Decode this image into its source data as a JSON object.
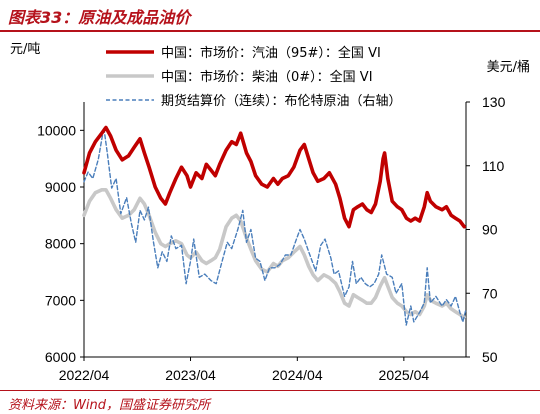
{
  "header": {
    "title": "图表33：原油及成品油价"
  },
  "footer": {
    "source": "资料来源：Wind，国盛证券研究所"
  },
  "colors": {
    "accent": "#b5121b",
    "gasoline": "#c00000",
    "diesel": "#c8c8c8",
    "brent": "#4a7ebb"
  },
  "chart_data": {
    "type": "line",
    "title": "",
    "x_ticks": [
      "2022/04",
      "2023/04",
      "2024/04",
      "2025/04"
    ],
    "x_range": [
      "2022-04-01",
      "2025-10-31"
    ],
    "y_left": {
      "label": "元/吨",
      "range": [
        6000,
        10500
      ],
      "ticks": [
        6000,
        7000,
        8000,
        9000,
        10000
      ]
    },
    "y_right": {
      "label": "美元/桶",
      "range": [
        50,
        130
      ],
      "ticks": [
        50,
        70,
        90,
        110,
        130
      ]
    },
    "grid": false,
    "legend_position": "top",
    "series": [
      {
        "name": "中国：市场价：汽油（95#）：全国 VI",
        "axis": "left",
        "data": [
          [
            "2022-04-01",
            9250
          ],
          [
            "2022-04-20",
            9600
          ],
          [
            "2022-05-10",
            9800
          ],
          [
            "2022-06-01",
            9950
          ],
          [
            "2022-06-15",
            10050
          ],
          [
            "2022-07-01",
            9900
          ],
          [
            "2022-07-20",
            9650
          ],
          [
            "2022-08-10",
            9480
          ],
          [
            "2022-09-01",
            9550
          ],
          [
            "2022-09-20",
            9700
          ],
          [
            "2022-10-10",
            9850
          ],
          [
            "2022-10-25",
            9600
          ],
          [
            "2022-11-10",
            9350
          ],
          [
            "2022-12-01",
            9000
          ],
          [
            "2022-12-20",
            8800
          ],
          [
            "2023-01-05",
            8700
          ],
          [
            "2023-01-20",
            8900
          ],
          [
            "2023-02-10",
            9150
          ],
          [
            "2023-03-01",
            9350
          ],
          [
            "2023-03-20",
            9200
          ],
          [
            "2023-04-01",
            9000
          ],
          [
            "2023-04-20",
            9250
          ],
          [
            "2023-05-10",
            9150
          ],
          [
            "2023-05-25",
            9400
          ],
          [
            "2023-06-10",
            9300
          ],
          [
            "2023-06-25",
            9200
          ],
          [
            "2023-07-10",
            9400
          ],
          [
            "2023-08-01",
            9650
          ],
          [
            "2023-08-20",
            9800
          ],
          [
            "2023-09-05",
            9750
          ],
          [
            "2023-09-20",
            9950
          ],
          [
            "2023-10-10",
            9600
          ],
          [
            "2023-10-25",
            9450
          ],
          [
            "2023-11-10",
            9200
          ],
          [
            "2023-12-01",
            9050
          ],
          [
            "2023-12-20",
            9000
          ],
          [
            "2024-01-10",
            9150
          ],
          [
            "2024-01-25",
            9050
          ],
          [
            "2024-02-10",
            9150
          ],
          [
            "2024-03-01",
            9200
          ],
          [
            "2024-03-20",
            9350
          ],
          [
            "2024-04-10",
            9650
          ],
          [
            "2024-04-25",
            9750
          ],
          [
            "2024-05-10",
            9500
          ],
          [
            "2024-05-25",
            9250
          ],
          [
            "2024-06-10",
            9100
          ],
          [
            "2024-07-01",
            9150
          ],
          [
            "2024-07-20",
            9250
          ],
          [
            "2024-08-10",
            9050
          ],
          [
            "2024-08-25",
            8800
          ],
          [
            "2024-09-10",
            8450
          ],
          [
            "2024-09-25",
            8300
          ],
          [
            "2024-10-10",
            8600
          ],
          [
            "2024-10-25",
            8650
          ],
          [
            "2024-11-10",
            8700
          ],
          [
            "2024-11-25",
            8600
          ],
          [
            "2024-12-10",
            8550
          ],
          [
            "2024-12-25",
            8700
          ],
          [
            "2025-01-10",
            9100
          ],
          [
            "2025-01-20",
            9500
          ],
          [
            "2025-01-25",
            9600
          ],
          [
            "2025-02-05",
            9150
          ],
          [
            "2025-02-20",
            8750
          ],
          [
            "2025-03-10",
            8650
          ],
          [
            "2025-03-25",
            8600
          ],
          [
            "2025-04-10",
            8450
          ],
          [
            "2025-04-25",
            8400
          ],
          [
            "2025-05-10",
            8450
          ],
          [
            "2025-05-25",
            8400
          ],
          [
            "2025-06-10",
            8650
          ],
          [
            "2025-06-20",
            8900
          ],
          [
            "2025-07-01",
            8750
          ],
          [
            "2025-07-20",
            8650
          ],
          [
            "2025-08-10",
            8600
          ],
          [
            "2025-08-25",
            8650
          ],
          [
            "2025-09-10",
            8500
          ],
          [
            "2025-09-25",
            8450
          ],
          [
            "2025-10-10",
            8400
          ],
          [
            "2025-10-25",
            8300
          ]
        ]
      },
      {
        "name": "中国：市场价：柴油（0#）：全国 VI",
        "axis": "left",
        "data": [
          [
            "2022-04-01",
            8500
          ],
          [
            "2022-04-20",
            8750
          ],
          [
            "2022-05-10",
            8900
          ],
          [
            "2022-06-01",
            8950
          ],
          [
            "2022-06-15",
            8950
          ],
          [
            "2022-07-01",
            8800
          ],
          [
            "2022-07-20",
            8600
          ],
          [
            "2022-08-10",
            8450
          ],
          [
            "2022-09-01",
            8500
          ],
          [
            "2022-09-20",
            8600
          ],
          [
            "2022-10-10",
            8800
          ],
          [
            "2022-10-25",
            8700
          ],
          [
            "2022-11-10",
            8500
          ],
          [
            "2022-12-01",
            8200
          ],
          [
            "2022-12-20",
            8000
          ],
          [
            "2023-01-05",
            7950
          ],
          [
            "2023-01-20",
            8000
          ],
          [
            "2023-02-10",
            8050
          ],
          [
            "2023-03-01",
            8000
          ],
          [
            "2023-03-20",
            7800
          ],
          [
            "2023-04-01",
            7750
          ],
          [
            "2023-04-20",
            7850
          ],
          [
            "2023-05-10",
            7700
          ],
          [
            "2023-05-25",
            7650
          ],
          [
            "2023-06-10",
            7700
          ],
          [
            "2023-06-25",
            7750
          ],
          [
            "2023-07-10",
            7900
          ],
          [
            "2023-08-01",
            8300
          ],
          [
            "2023-08-20",
            8450
          ],
          [
            "2023-09-05",
            8500
          ],
          [
            "2023-09-20",
            8400
          ],
          [
            "2023-10-10",
            8100
          ],
          [
            "2023-10-25",
            7900
          ],
          [
            "2023-11-10",
            7700
          ],
          [
            "2023-12-01",
            7550
          ],
          [
            "2023-12-20",
            7500
          ],
          [
            "2024-01-10",
            7650
          ],
          [
            "2024-01-25",
            7600
          ],
          [
            "2024-02-10",
            7700
          ],
          [
            "2024-03-01",
            7750
          ],
          [
            "2024-03-20",
            7850
          ],
          [
            "2024-04-10",
            7950
          ],
          [
            "2024-04-25",
            7800
          ],
          [
            "2024-05-10",
            7600
          ],
          [
            "2024-05-25",
            7450
          ],
          [
            "2024-06-10",
            7350
          ],
          [
            "2024-07-01",
            7450
          ],
          [
            "2024-07-20",
            7400
          ],
          [
            "2024-08-10",
            7300
          ],
          [
            "2024-08-25",
            7150
          ],
          [
            "2024-09-10",
            6950
          ],
          [
            "2024-09-25",
            6900
          ],
          [
            "2024-10-10",
            7100
          ],
          [
            "2024-10-25",
            7050
          ],
          [
            "2024-11-10",
            7000
          ],
          [
            "2024-11-25",
            6950
          ],
          [
            "2024-12-10",
            6950
          ],
          [
            "2024-12-25",
            7050
          ],
          [
            "2025-01-10",
            7250
          ],
          [
            "2025-01-20",
            7350
          ],
          [
            "2025-01-25",
            7400
          ],
          [
            "2025-02-05",
            7250
          ],
          [
            "2025-02-20",
            7050
          ],
          [
            "2025-03-10",
            6950
          ],
          [
            "2025-03-25",
            6900
          ],
          [
            "2025-04-10",
            6800
          ],
          [
            "2025-04-25",
            6750
          ],
          [
            "2025-05-10",
            6800
          ],
          [
            "2025-05-25",
            6750
          ],
          [
            "2025-06-10",
            6900
          ],
          [
            "2025-06-20",
            7100
          ],
          [
            "2025-07-01",
            7000
          ],
          [
            "2025-07-20",
            6950
          ],
          [
            "2025-08-10",
            6900
          ],
          [
            "2025-08-25",
            6950
          ],
          [
            "2025-09-10",
            6850
          ],
          [
            "2025-09-25",
            6800
          ],
          [
            "2025-10-10",
            6750
          ],
          [
            "2025-10-25",
            6700
          ]
        ]
      },
      {
        "name": "期货结算价（连续）：布伦特原油（右轴）",
        "axis": "right",
        "data": [
          [
            "2022-04-01",
            105
          ],
          [
            "2022-04-15",
            108
          ],
          [
            "2022-05-01",
            106
          ],
          [
            "2022-05-20",
            112
          ],
          [
            "2022-06-08",
            122
          ],
          [
            "2022-06-20",
            114
          ],
          [
            "2022-07-05",
            103
          ],
          [
            "2022-07-20",
            106
          ],
          [
            "2022-08-05",
            95
          ],
          [
            "2022-08-25",
            100
          ],
          [
            "2022-09-10",
            92
          ],
          [
            "2022-09-25",
            86
          ],
          [
            "2022-10-10",
            96
          ],
          [
            "2022-10-25",
            93
          ],
          [
            "2022-11-08",
            97
          ],
          [
            "2022-11-25",
            86
          ],
          [
            "2022-12-10",
            78
          ],
          [
            "2022-12-25",
            83
          ],
          [
            "2023-01-10",
            80
          ],
          [
            "2023-01-25",
            88
          ],
          [
            "2023-02-10",
            84
          ],
          [
            "2023-03-01",
            85
          ],
          [
            "2023-03-17",
            73
          ],
          [
            "2023-04-01",
            80
          ],
          [
            "2023-04-12",
            87
          ],
          [
            "2023-05-01",
            75
          ],
          [
            "2023-05-20",
            76
          ],
          [
            "2023-06-10",
            74
          ],
          [
            "2023-06-28",
            73
          ],
          [
            "2023-07-15",
            79
          ],
          [
            "2023-08-05",
            86
          ],
          [
            "2023-08-20",
            84
          ],
          [
            "2023-09-10",
            90
          ],
          [
            "2023-09-27",
            96
          ],
          [
            "2023-10-10",
            86
          ],
          [
            "2023-10-25",
            90
          ],
          [
            "2023-11-10",
            81
          ],
          [
            "2023-11-25",
            80
          ],
          [
            "2023-12-12",
            74
          ],
          [
            "2023-12-28",
            78
          ],
          [
            "2024-01-15",
            78
          ],
          [
            "2024-02-01",
            79
          ],
          [
            "2024-02-20",
            82
          ],
          [
            "2024-03-10",
            82
          ],
          [
            "2024-03-25",
            86
          ],
          [
            "2024-04-10",
            90
          ],
          [
            "2024-04-25",
            87
          ],
          [
            "2024-05-10",
            83
          ],
          [
            "2024-06-03",
            77
          ],
          [
            "2024-06-20",
            85
          ],
          [
            "2024-07-05",
            87
          ],
          [
            "2024-07-25",
            81
          ],
          [
            "2024-08-05",
            76
          ],
          [
            "2024-08-20",
            77
          ],
          [
            "2024-09-10",
            69
          ],
          [
            "2024-09-25",
            72
          ],
          [
            "2024-10-07",
            80
          ],
          [
            "2024-10-20",
            73
          ],
          [
            "2024-11-05",
            75
          ],
          [
            "2024-11-20",
            73
          ],
          [
            "2024-12-05",
            72
          ],
          [
            "2024-12-20",
            73
          ],
          [
            "2025-01-05",
            76
          ],
          [
            "2025-01-15",
            82
          ],
          [
            "2025-02-01",
            76
          ],
          [
            "2025-02-20",
            75
          ],
          [
            "2025-03-05",
            70
          ],
          [
            "2025-03-25",
            73
          ],
          [
            "2025-04-09",
            60
          ],
          [
            "2025-04-25",
            66
          ],
          [
            "2025-05-05",
            61
          ],
          [
            "2025-05-25",
            64
          ],
          [
            "2025-06-10",
            67
          ],
          [
            "2025-06-20",
            78
          ],
          [
            "2025-07-01",
            67
          ],
          [
            "2025-07-20",
            69
          ],
          [
            "2025-08-10",
            66
          ],
          [
            "2025-08-25",
            68
          ],
          [
            "2025-09-10",
            66
          ],
          [
            "2025-09-25",
            69
          ],
          [
            "2025-10-10",
            64
          ],
          [
            "2025-10-20",
            61
          ],
          [
            "2025-10-31",
            65
          ]
        ]
      }
    ]
  }
}
